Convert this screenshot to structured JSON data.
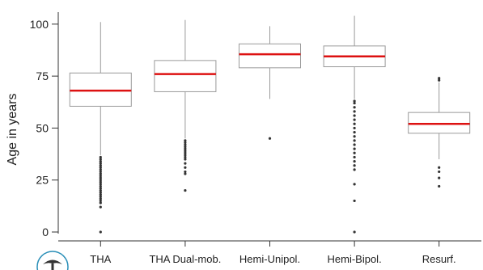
{
  "chart_data": {
    "type": "box",
    "title": "",
    "xlabel": "",
    "ylabel": "Age in years",
    "ylim": [
      0,
      105
    ],
    "yticks": [
      0,
      25,
      50,
      75,
      100
    ],
    "grid": false,
    "median_color": "#dd1111",
    "box_color": "#9a9a9a",
    "categories": [
      "THA",
      "THA Dual-mob.",
      "Hemi-Unipol.",
      "Hemi-Bipol.",
      "Resurf."
    ],
    "boxes": [
      {
        "category": "THA",
        "whisker_low": 37,
        "q1": 60.5,
        "median": 68,
        "q3": 76.5,
        "whisker_high": 101,
        "outliers": [
          0,
          12,
          14,
          15,
          16,
          17,
          18,
          19,
          20,
          21,
          22,
          23,
          24,
          25,
          26,
          27,
          28,
          29,
          30,
          31,
          32,
          33,
          34,
          35,
          36
        ]
      },
      {
        "category": "THA Dual-mob.",
        "whisker_low": 45,
        "q1": 67.5,
        "median": 76,
        "q3": 82.5,
        "whisker_high": 102,
        "outliers": [
          20,
          28,
          29,
          31,
          33,
          35,
          36,
          37,
          38,
          39,
          40,
          41,
          42,
          43,
          44
        ]
      },
      {
        "category": "Hemi-Unipol.",
        "whisker_low": 64,
        "q1": 79,
        "median": 85.5,
        "q3": 90.5,
        "whisker_high": 99,
        "outliers": [
          45
        ]
      },
      {
        "category": "Hemi-Bipol.",
        "whisker_low": 64,
        "q1": 79.5,
        "median": 84.5,
        "q3": 89.5,
        "whisker_high": 104,
        "outliers": [
          0,
          15,
          23,
          30,
          32,
          34,
          36,
          38,
          40,
          42,
          44,
          46,
          48,
          50,
          52,
          54,
          56,
          58,
          60,
          62,
          63
        ]
      },
      {
        "category": "Resurf.",
        "whisker_low": 35,
        "q1": 47.5,
        "median": 52,
        "q3": 57.5,
        "whisker_high": 72,
        "outliers": [
          22,
          26,
          29,
          31,
          73,
          74
        ]
      }
    ]
  }
}
